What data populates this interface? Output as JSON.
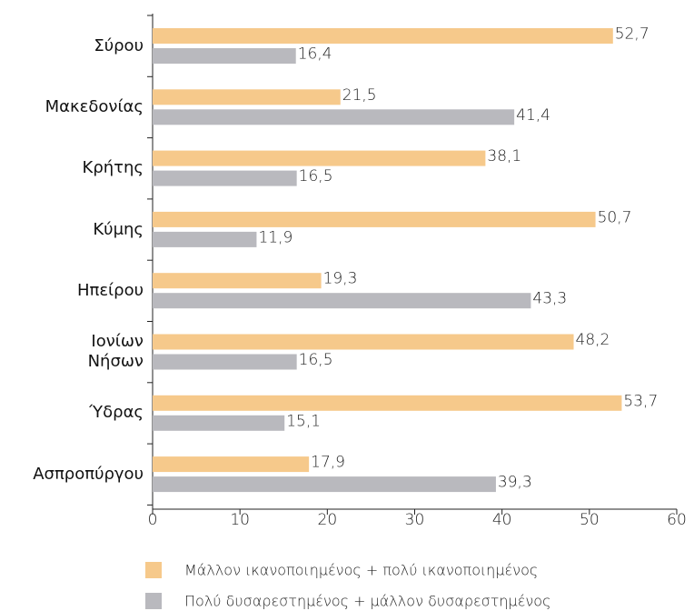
{
  "chart_data": {
    "type": "barh",
    "categories": [
      "Σύρου",
      "Μακεδονίας",
      "Κρήτης",
      "Κύμης",
      "Ηπείρου",
      "Ιονίων\nΝήσων",
      "Ύδρας",
      "Ασπροπύργου"
    ],
    "series": [
      {
        "name": "Μάλλον ικανοποιημένος + πολύ ικανοποιημένος",
        "color": "#f6c98b",
        "values": [
          52.7,
          21.5,
          38.1,
          50.7,
          19.3,
          48.2,
          53.7,
          17.9
        ],
        "value_labels": [
          "52,7",
          "21,5",
          "38,1",
          "50,7",
          "19,3",
          "48,2",
          "53,7",
          "17,9"
        ]
      },
      {
        "name": "Πολύ δυσαρεστημένος + μάλλον δυσαρεστημένος",
        "color": "#b9b9be",
        "values": [
          16.4,
          41.4,
          16.5,
          11.9,
          43.3,
          16.5,
          15.1,
          39.3
        ],
        "value_labels": [
          "16,4",
          "41,4",
          "16,5",
          "11,9",
          "43,3",
          "16,5",
          "15,1",
          "39,3"
        ]
      }
    ],
    "xlim": [
      0,
      60
    ],
    "xticks": [
      0,
      10,
      20,
      30,
      40,
      50,
      60
    ]
  }
}
